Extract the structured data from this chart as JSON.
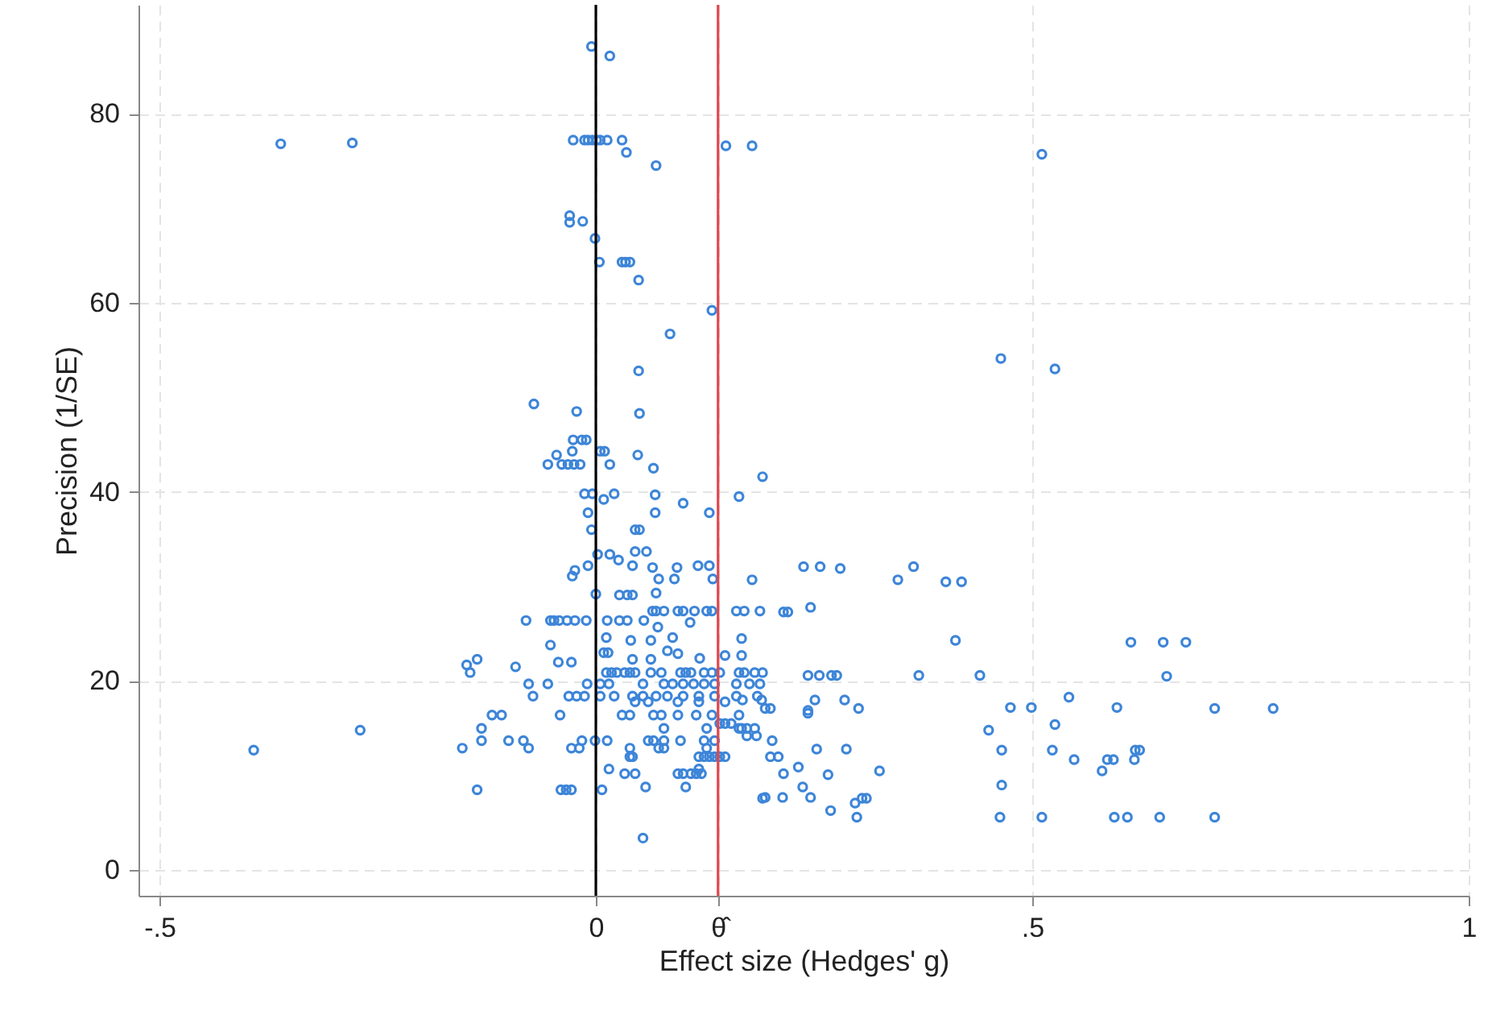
{
  "chart_data": {
    "type": "scatter",
    "xlabel": "Effect size (Hedges' g)",
    "ylabel": "Precision (1/SE)",
    "xlim": [
      -0.524,
      1.0
    ],
    "ylim": [
      -2.7,
      91.5
    ],
    "xticks": [
      {
        "value": -0.5,
        "label": "-.5"
      },
      0,
      {
        "value": 0.14,
        "label": "θ̂"
      },
      {
        "value": 0.5,
        "label": ".5"
      },
      1
    ],
    "yticks": [
      0,
      20,
      40,
      60,
      80
    ],
    "grid": true,
    "marker": "circle",
    "ref_lines": [
      {
        "axis": "x",
        "value": 0,
        "color": "#000000"
      },
      {
        "axis": "x",
        "value": 0.14,
        "color": "#e0474c"
      }
    ],
    "series": [
      {
        "color": "#3d85d8",
        "x": [
          -0.005,
          0.016,
          -0.361,
          -0.279,
          -0.026,
          -0.013,
          -0.009,
          -0.004,
          0.001,
          0.005,
          0.013,
          0.03,
          0.035,
          0.069,
          0.149,
          0.179,
          -0.03,
          -0.03,
          -0.015,
          -0.001,
          0.004,
          0.03,
          0.034,
          0.039,
          0.049,
          0.133,
          0.085,
          0.049,
          -0.071,
          -0.022,
          0.05,
          -0.026,
          -0.016,
          -0.011,
          -0.045,
          -0.027,
          0.005,
          0.01,
          0.048,
          -0.055,
          -0.039,
          -0.032,
          -0.025,
          -0.018,
          0.016,
          0.066,
          0.191,
          -0.013,
          -0.004,
          0.021,
          0.009,
          0.068,
          0.164,
          0.1,
          -0.009,
          0.068,
          0.13,
          -0.005,
          0.045,
          0.05,
          0.002,
          0.016,
          0.026,
          0.045,
          0.058,
          -0.024,
          -0.027,
          -0.009,
          0.042,
          0.065,
          0.072,
          0.093,
          0.09,
          0.117,
          0.13,
          0.134,
          0.179,
          0.0,
          0.027,
          0.036,
          0.042,
          0.069,
          0.065,
          0.069,
          0.078,
          0.094,
          0.1,
          0.113,
          0.127,
          0.133,
          0.161,
          0.17,
          0.188,
          -0.08,
          -0.052,
          -0.048,
          -0.042,
          -0.033,
          -0.024,
          -0.011,
          0.013,
          0.027,
          0.036,
          0.055,
          0.108,
          0.071,
          0.167,
          -0.052,
          0.012,
          0.04,
          0.063,
          0.088,
          -0.043,
          -0.028,
          0.009,
          0.014,
          0.042,
          0.063,
          0.082,
          0.094,
          0.119,
          0.148,
          0.167,
          -0.136,
          -0.144,
          -0.092,
          0.012,
          0.018,
          0.024,
          0.033,
          0.039,
          0.045,
          0.063,
          0.075,
          0.097,
          0.103,
          0.109,
          0.124,
          0.133,
          0.142,
          0.164,
          0.17,
          0.182,
          0.191,
          -0.077,
          -0.055,
          -0.01,
          0.005,
          0.015,
          0.054,
          0.078,
          0.088,
          0.1,
          0.112,
          0.124,
          0.136,
          0.161,
          0.176,
          0.188,
          -0.072,
          -0.031,
          -0.022,
          -0.013,
          0.005,
          0.021,
          0.042,
          0.054,
          0.069,
          0.082,
          0.1,
          0.118,
          0.136,
          0.161,
          0.185,
          0.045,
          0.06,
          0.094,
          0.118,
          0.148,
          -0.119,
          -0.108,
          -0.041,
          0.03,
          0.039,
          0.066,
          0.075,
          0.094,
          0.115,
          0.133,
          0.164,
          0.142,
          0.148,
          0.155,
          -0.131,
          0.078,
          0.127,
          0.164,
          0.167,
          0.173,
          0.182,
          -0.131,
          -0.1,
          -0.083,
          -0.016,
          -0.001,
          0.013,
          0.06,
          0.066,
          0.078,
          0.097,
          0.124,
          0.136,
          -0.153,
          -0.077,
          -0.028,
          -0.019,
          0.039,
          0.072,
          0.078,
          0.127,
          0.039,
          0.042,
          0.118,
          0.124,
          0.13,
          0.136,
          0.142,
          0.148,
          0.015,
          0.118,
          0.033,
          0.045,
          0.094,
          0.1,
          0.109,
          0.115,
          0.121,
          0.057,
          0.103,
          0.191,
          -0.136,
          -0.04,
          -0.034,
          -0.028,
          0.007,
          0.054,
          -0.392,
          -0.27,
          -0.148,
          0.238,
          0.257,
          0.28,
          0.346,
          0.364,
          0.401,
          0.419,
          0.215,
          0.22,
          0.246,
          0.412,
          0.613,
          0.65,
          0.676,
          0.654,
          0.243,
          0.256,
          0.27,
          0.276,
          0.37,
          0.44,
          0.168,
          0.19,
          0.194,
          0.2,
          0.251,
          0.285,
          0.243,
          0.243,
          0.301,
          0.475,
          0.499,
          0.542,
          0.597,
          0.709,
          0.776,
          0.45,
          0.526,
          0.173,
          0.184,
          0.202,
          0.2,
          0.209,
          0.253,
          0.287,
          0.465,
          0.523,
          0.548,
          0.586,
          0.593,
          0.618,
          0.623,
          0.617,
          0.58,
          0.215,
          0.232,
          0.266,
          0.325,
          0.237,
          0.465,
          0.194,
          0.214,
          0.246,
          0.269,
          0.297,
          0.305,
          0.31,
          0.299,
          0.463,
          0.511,
          0.594,
          0.609,
          0.646,
          0.709,
          0.511,
          0.464,
          0.526
        ],
        "values": [
          87.1,
          86.1,
          76.8,
          76.9,
          77.2,
          77.2,
          77.2,
          77.2,
          77.2,
          77.2,
          77.2,
          77.2,
          75.9,
          74.5,
          76.6,
          76.6,
          69.2,
          68.5,
          68.6,
          66.8,
          64.3,
          64.3,
          64.3,
          64.3,
          62.4,
          59.2,
          56.7,
          52.8,
          49.3,
          48.5,
          48.3,
          45.5,
          45.5,
          45.5,
          43.9,
          44.3,
          44.3,
          44.3,
          43.9,
          42.9,
          42.9,
          42.9,
          42.9,
          42.9,
          42.9,
          42.5,
          41.6,
          39.8,
          39.8,
          39.8,
          39.2,
          39.7,
          39.5,
          38.8,
          37.8,
          37.8,
          37.8,
          36.0,
          36.0,
          36.0,
          33.4,
          33.4,
          32.8,
          33.7,
          33.7,
          31.7,
          31.1,
          32.2,
          32.2,
          32.0,
          30.8,
          32.0,
          30.8,
          32.2,
          32.2,
          30.8,
          30.7,
          29.2,
          29.1,
          29.1,
          29.1,
          29.3,
          27.4,
          27.4,
          27.4,
          27.4,
          27.4,
          27.4,
          27.4,
          27.4,
          27.4,
          27.4,
          27.4,
          26.4,
          26.4,
          26.4,
          26.4,
          26.4,
          26.4,
          26.4,
          26.4,
          26.4,
          26.4,
          26.4,
          26.2,
          25.7,
          24.5,
          23.8,
          24.6,
          24.3,
          24.3,
          24.6,
          22.0,
          22.0,
          23.0,
          23.0,
          22.3,
          22.3,
          23.2,
          22.9,
          22.4,
          22.7,
          22.7,
          22.3,
          20.9,
          21.5,
          20.9,
          20.9,
          20.9,
          20.9,
          20.9,
          20.9,
          20.9,
          20.9,
          20.9,
          20.9,
          20.9,
          20.9,
          20.9,
          20.9,
          20.9,
          20.9,
          20.9,
          20.9,
          19.7,
          19.7,
          19.7,
          19.7,
          19.7,
          19.7,
          19.7,
          19.7,
          19.7,
          19.7,
          19.7,
          19.7,
          19.7,
          19.7,
          19.7,
          18.4,
          18.4,
          18.4,
          18.4,
          18.4,
          18.4,
          18.4,
          18.4,
          18.4,
          18.4,
          18.4,
          18.4,
          18.4,
          18.4,
          18.4,
          17.8,
          17.8,
          17.8,
          17.8,
          17.8,
          16.4,
          16.4,
          16.4,
          16.4,
          16.4,
          16.4,
          16.4,
          16.4,
          16.4,
          16.4,
          16.4,
          15.5,
          15.5,
          15.5,
          15.0,
          15.0,
          15.0,
          15.0,
          15.0,
          15.0,
          15.0,
          13.7,
          13.7,
          13.7,
          13.7,
          13.7,
          13.7,
          13.7,
          13.7,
          13.7,
          13.7,
          13.7,
          13.7,
          12.9,
          12.9,
          12.9,
          12.9,
          12.9,
          12.9,
          12.9,
          12.9,
          12.0,
          12.0,
          12.0,
          12.0,
          12.0,
          12.0,
          12.0,
          12.0,
          10.7,
          10.7,
          10.2,
          10.2,
          10.2,
          10.2,
          10.2,
          10.2,
          10.2,
          8.8,
          8.8,
          7.6,
          8.5,
          8.5,
          8.5,
          8.5,
          8.5,
          3.4,
          12.7,
          14.8,
          21.7,
          32.1,
          32.1,
          31.9,
          30.7,
          32.1,
          30.5,
          30.5,
          27.3,
          27.3,
          27.8,
          24.3,
          24.1,
          24.1,
          24.1,
          20.5,
          20.6,
          20.6,
          20.6,
          20.6,
          20.6,
          20.6,
          18.0,
          18.0,
          17.1,
          17.1,
          18.0,
          18.0,
          16.9,
          16.6,
          17.1,
          17.2,
          17.2,
          18.3,
          17.2,
          17.1,
          17.1,
          14.8,
          15.4,
          14.2,
          14.2,
          13.7,
          12.0,
          12.0,
          12.8,
          12.8,
          12.7,
          12.7,
          11.7,
          11.7,
          11.7,
          12.7,
          12.7,
          11.7,
          10.5,
          10.2,
          10.9,
          10.1,
          10.5,
          8.8,
          9.0,
          7.7,
          7.7,
          7.7,
          6.3,
          7.1,
          7.6,
          7.6,
          5.6,
          5.6,
          5.6,
          5.6,
          5.6,
          5.6,
          5.6,
          75.7,
          54.1,
          53.0
        ]
      }
    ]
  }
}
